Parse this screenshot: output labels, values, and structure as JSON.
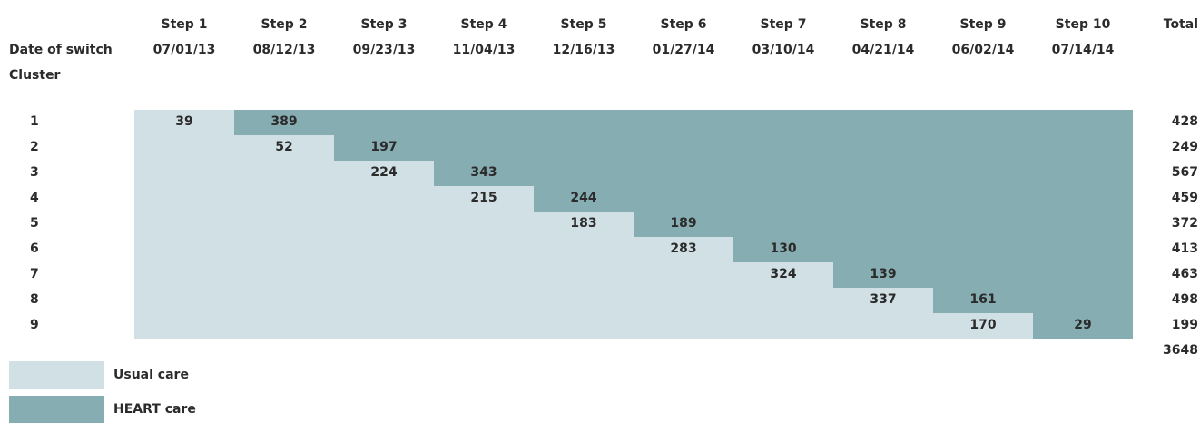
{
  "header": {
    "date_label": "Date of switch",
    "cluster_label": "Cluster",
    "total_label": "Total",
    "steps": [
      {
        "label": "Step 1",
        "date": "07/01/13"
      },
      {
        "label": "Step 2",
        "date": "08/12/13"
      },
      {
        "label": "Step 3",
        "date": "09/23/13"
      },
      {
        "label": "Step 4",
        "date": "11/04/13"
      },
      {
        "label": "Step 5",
        "date": "12/16/13"
      },
      {
        "label": "Step 6",
        "date": "01/27/14"
      },
      {
        "label": "Step 7",
        "date": "03/10/14"
      },
      {
        "label": "Step 8",
        "date": "04/21/14"
      },
      {
        "label": "Step 9",
        "date": "06/02/14"
      },
      {
        "label": "Step 10",
        "date": "07/14/14"
      }
    ]
  },
  "clusters": [
    {
      "id": "1",
      "usual_count": "39",
      "heart_count": "389",
      "switch_step": 2,
      "total": "428"
    },
    {
      "id": "2",
      "usual_count": "52",
      "heart_count": "197",
      "switch_step": 3,
      "total": "249"
    },
    {
      "id": "3",
      "usual_count": "224",
      "heart_count": "343",
      "switch_step": 4,
      "total": "567"
    },
    {
      "id": "4",
      "usual_count": "215",
      "heart_count": "244",
      "switch_step": 5,
      "total": "459"
    },
    {
      "id": "5",
      "usual_count": "183",
      "heart_count": "189",
      "switch_step": 6,
      "total": "372"
    },
    {
      "id": "6",
      "usual_count": "283",
      "heart_count": "130",
      "switch_step": 7,
      "total": "413"
    },
    {
      "id": "7",
      "usual_count": "324",
      "heart_count": "139",
      "switch_step": 8,
      "total": "463"
    },
    {
      "id": "8",
      "usual_count": "337",
      "heart_count": "161",
      "switch_step": 9,
      "total": "498"
    },
    {
      "id": "9",
      "usual_count": "170",
      "heart_count": "29",
      "switch_step": 10,
      "total": "199"
    }
  ],
  "grand_total": "3648",
  "legend": [
    {
      "label": "Usual care",
      "color": "#d1e0e5"
    },
    {
      "label": "HEART care",
      "color": "#86adb2"
    }
  ]
}
